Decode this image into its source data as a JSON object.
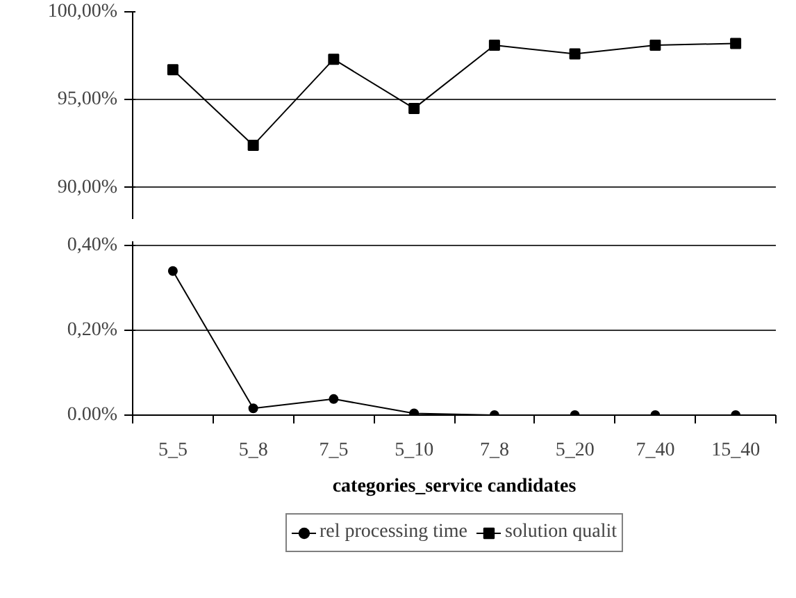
{
  "chart_data": [
    {
      "type": "line",
      "categories": [
        null,
        null,
        null,
        null,
        null,
        null,
        null,
        null
      ],
      "series": [
        {
          "name": "solution qualit",
          "color": "#000000",
          "values": [
            96.7,
            92.4,
            97.3,
            94.5,
            98.1,
            97.6,
            98.1,
            98.2
          ],
          "marker": "square"
        }
      ],
      "ylim": [
        88.2,
        100
      ],
      "yticks": [
        {
          "value": 90,
          "label": "90,00%"
        },
        {
          "value": 95,
          "label": "95,00%"
        },
        {
          "value": 100,
          "label": "100,00%"
        }
      ],
      "grid": "y",
      "legend": "bottom",
      "tick_labels": "y",
      "line_style": "solid"
    },
    {
      "type": "line",
      "categories": [
        "5_5",
        "5_8",
        "7_5",
        "5_10",
        "7_8",
        "5_20",
        "7_40",
        "15_40"
      ],
      "series": [
        {
          "name": "rel processing time",
          "color": "#000000",
          "values": [
            0.34,
            0.016,
            0.038,
            0.004,
            0,
            0,
            0,
            0
          ],
          "marker": "circle"
        }
      ],
      "ylim": [
        0,
        0.41
      ],
      "yticks": [
        {
          "value": 0,
          "label": "0.00%"
        },
        {
          "value": 0.2,
          "label": "0,20%"
        },
        {
          "value": 0.4,
          "label": "0,40%"
        }
      ],
      "xlabel": "categories_service candidates",
      "grid": "y",
      "legend": "bottom",
      "line_style": "solid"
    }
  ]
}
